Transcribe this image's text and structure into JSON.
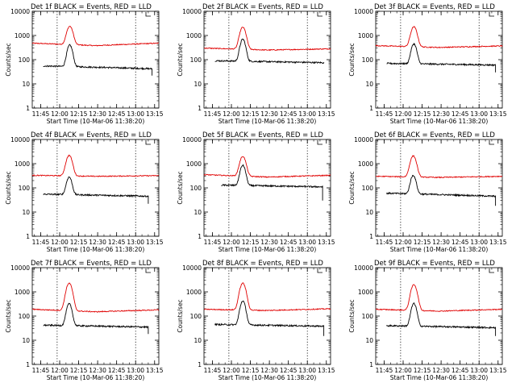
{
  "chart_data": {
    "type": "line",
    "layout": "3x3 grid of panels",
    "y_scale": "log",
    "ylim": [
      1,
      10000
    ],
    "y_ticks": [
      "1",
      "10",
      "100",
      "1000",
      "10000"
    ],
    "ylabel": "Counts/sec",
    "x_ticks": [
      "11:45",
      "12:00",
      "12:15",
      "12:30",
      "12:45",
      "13:00",
      "13:15"
    ],
    "xlim": [
      "11:38:20",
      "13:18:20"
    ],
    "xlabel": "Start Time (10-Mar-06 11:38:20)",
    "marker_times": [
      "11:58:00",
      "13:00:00"
    ],
    "grid": false,
    "colors": {
      "events": "#000000",
      "lld": "#e00000"
    },
    "panels": [
      {
        "title": "Det 1f BLACK = Events, RED = LLD",
        "events": {
          "start": "11:47:00",
          "end": "13:13:00",
          "base": 55,
          "end_base": 42,
          "peak": 400,
          "peak_time": "12:08:00",
          "end_drop": 22
        },
        "lld": {
          "start": "11:38:20",
          "end": "13:18:20",
          "base": 480,
          "mid": 380,
          "end_base": 480,
          "peak": 2400,
          "peak_time": "12:08:00"
        }
      },
      {
        "title": "Det 2f BLACK = Events, RED = LLD",
        "events": {
          "start": "11:47:00",
          "end": "13:13:00",
          "base": 90,
          "end_base": 75,
          "peak": 700,
          "peak_time": "12:09:00",
          "end_drop": 70
        },
        "lld": {
          "start": "11:38:20",
          "end": "13:18:20",
          "base": 300,
          "mid": 250,
          "end_base": 280,
          "peak": 2200,
          "peak_time": "12:09:00"
        }
      },
      {
        "title": "Det 3f BLACK = Events, RED = LLD",
        "events": {
          "start": "11:47:00",
          "end": "13:13:00",
          "base": 70,
          "end_base": 60,
          "peak": 450,
          "peak_time": "12:08:30",
          "end_drop": 30
        },
        "lld": {
          "start": "11:38:20",
          "end": "13:18:20",
          "base": 380,
          "mid": 320,
          "end_base": 370,
          "peak": 2300,
          "peak_time": "12:08:30"
        }
      },
      {
        "title": "Det 4f BLACK = Events, RED = LLD",
        "events": {
          "start": "11:47:00",
          "end": "13:10:00",
          "base": 55,
          "end_base": 45,
          "peak": 280,
          "peak_time": "12:07:30",
          "end_drop": 22
        },
        "lld": {
          "start": "11:38:20",
          "end": "13:18:20",
          "base": 330,
          "mid": 300,
          "end_base": 320,
          "peak": 2200,
          "peak_time": "12:07:30"
        }
      },
      {
        "title": "Det 5f BLACK = Events, RED = LLD",
        "events": {
          "start": "11:52:00",
          "end": "13:12:00",
          "base": 130,
          "end_base": 110,
          "peak": 850,
          "peak_time": "12:09:00",
          "end_drop": 30
        },
        "lld": {
          "start": "11:38:20",
          "end": "13:18:20",
          "base": 350,
          "mid": 280,
          "end_base": 330,
          "peak": 2000,
          "peak_time": "12:09:00"
        }
      },
      {
        "title": "Det 6f BLACK = Events, RED = LLD",
        "events": {
          "start": "11:47:00",
          "end": "13:13:00",
          "base": 60,
          "end_base": 45,
          "peak": 330,
          "peak_time": "12:08:00",
          "end_drop": 18
        },
        "lld": {
          "start": "11:38:20",
          "end": "13:18:20",
          "base": 300,
          "mid": 270,
          "end_base": 300,
          "peak": 2100,
          "peak_time": "12:08:00"
        }
      },
      {
        "title": "Det 7f BLACK = Events, RED = LLD",
        "events": {
          "start": "11:47:00",
          "end": "13:10:00",
          "base": 42,
          "end_base": 35,
          "peak": 320,
          "peak_time": "12:07:30",
          "end_drop": 18
        },
        "lld": {
          "start": "11:38:20",
          "end": "13:18:20",
          "base": 190,
          "mid": 150,
          "end_base": 180,
          "peak": 2300,
          "peak_time": "12:07:30"
        }
      },
      {
        "title": "Det 8f BLACK = Events, RED = LLD",
        "events": {
          "start": "11:47:00",
          "end": "13:13:00",
          "base": 45,
          "end_base": 38,
          "peak": 420,
          "peak_time": "12:09:00",
          "end_drop": 15
        },
        "lld": {
          "start": "11:38:20",
          "end": "13:18:20",
          "base": 190,
          "mid": 170,
          "end_base": 200,
          "peak": 2300,
          "peak_time": "12:09:00"
        }
      },
      {
        "title": "Det 9f BLACK = Events, RED = LLD",
        "events": {
          "start": "11:47:00",
          "end": "13:13:00",
          "base": 40,
          "end_base": 33,
          "peak": 330,
          "peak_time": "12:08:30",
          "end_drop": 15
        },
        "lld": {
          "start": "11:38:20",
          "end": "13:18:20",
          "base": 190,
          "mid": 160,
          "end_base": 190,
          "peak": 2000,
          "peak_time": "12:08:30"
        }
      }
    ]
  }
}
